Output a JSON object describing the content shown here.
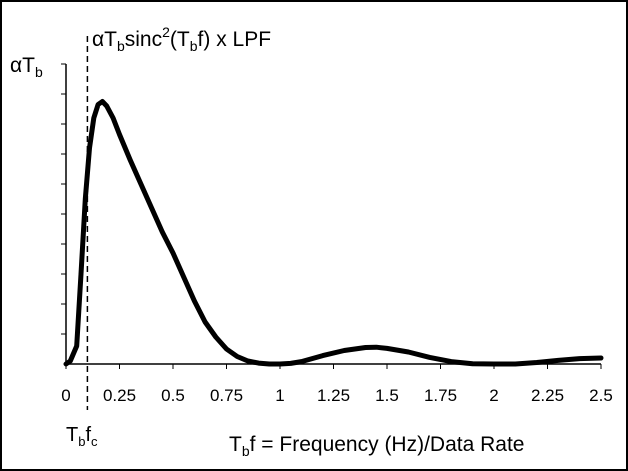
{
  "chart_data": {
    "type": "line",
    "title_prefix": "αT",
    "title_sub": "b",
    "title_mid": "sinc",
    "title_sup": "2",
    "title_paren": "(T",
    "title_paren_sub": "b",
    "title_suffix": "f) x LPF",
    "ylabel_main": "αT",
    "ylabel_sub": "b",
    "xlabel_T": "T",
    "xlabel_sub": "b",
    "xlabel_rest": "f = Frequency (Hz)/Data Rate",
    "cutoff_label_T": "T",
    "cutoff_label_sub1": "b",
    "cutoff_label_f": "f",
    "cutoff_label_sub2": "c",
    "cutoff_x": 0.1,
    "xlim": [
      0,
      2.5
    ],
    "ylim": [
      0,
      1
    ],
    "xticks": [
      "0",
      "0.25",
      "0.5",
      "0.75",
      "1",
      "1.25",
      "1.5",
      "1.75",
      "2",
      "2.25",
      "2.5"
    ],
    "y_minor_tick_count": 10,
    "grid": false,
    "series": [
      {
        "color": "#000000",
        "points": [
          [
            0.0,
            0.0
          ],
          [
            0.02,
            0.01
          ],
          [
            0.05,
            0.06
          ],
          [
            0.07,
            0.3
          ],
          [
            0.09,
            0.55
          ],
          [
            0.11,
            0.72
          ],
          [
            0.13,
            0.82
          ],
          [
            0.15,
            0.865
          ],
          [
            0.17,
            0.875
          ],
          [
            0.19,
            0.86
          ],
          [
            0.22,
            0.82
          ],
          [
            0.25,
            0.765
          ],
          [
            0.3,
            0.68
          ],
          [
            0.35,
            0.6
          ],
          [
            0.4,
            0.52
          ],
          [
            0.45,
            0.44
          ],
          [
            0.5,
            0.37
          ],
          [
            0.55,
            0.29
          ],
          [
            0.6,
            0.21
          ],
          [
            0.65,
            0.14
          ],
          [
            0.7,
            0.09
          ],
          [
            0.75,
            0.05
          ],
          [
            0.8,
            0.025
          ],
          [
            0.85,
            0.01
          ],
          [
            0.9,
            0.003
          ],
          [
            0.95,
            0.0
          ],
          [
            1.0,
            0.0
          ],
          [
            1.05,
            0.002
          ],
          [
            1.1,
            0.008
          ],
          [
            1.2,
            0.028
          ],
          [
            1.3,
            0.045
          ],
          [
            1.4,
            0.055
          ],
          [
            1.45,
            0.056
          ],
          [
            1.5,
            0.052
          ],
          [
            1.6,
            0.04
          ],
          [
            1.7,
            0.022
          ],
          [
            1.8,
            0.008
          ],
          [
            1.9,
            0.001
          ],
          [
            2.0,
            0.0
          ],
          [
            2.1,
            0.0
          ],
          [
            2.2,
            0.005
          ],
          [
            2.3,
            0.012
          ],
          [
            2.4,
            0.018
          ],
          [
            2.5,
            0.02
          ]
        ]
      }
    ]
  }
}
